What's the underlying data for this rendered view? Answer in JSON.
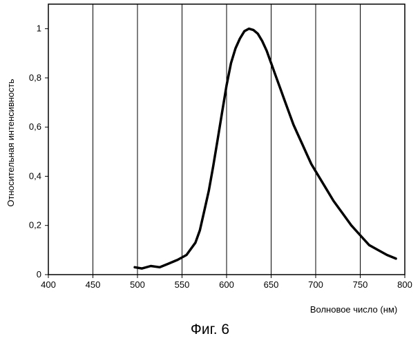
{
  "figure_caption": "Фиг. 6",
  "chart_data": {
    "type": "line",
    "xlabel": "Волновое число (нм)",
    "ylabel": "Относительная интенсивность",
    "xlim": [
      400,
      800
    ],
    "ylim": [
      0,
      1.1
    ],
    "x_ticks": [
      400,
      450,
      500,
      550,
      600,
      650,
      700,
      750,
      800
    ],
    "y_ticks": [
      0,
      0.2,
      0.4,
      0.6,
      0.8,
      1
    ],
    "y_tick_labels": [
      "0",
      "0,2",
      "0,4",
      "0,6",
      "0,8",
      "1"
    ],
    "grid": {
      "vertical": true,
      "horizontal": false
    },
    "series": [
      {
        "x": [
          497,
          505,
          515,
          525,
          535,
          545,
          555,
          565,
          570,
          575,
          580,
          585,
          590,
          595,
          600,
          605,
          610,
          615,
          620,
          625,
          630,
          635,
          640,
          645,
          650,
          655,
          660,
          665,
          670,
          675,
          680,
          685,
          690,
          695,
          700,
          710,
          720,
          730,
          740,
          750,
          760,
          770,
          780,
          790
        ],
        "y": [
          0.03,
          0.025,
          0.035,
          0.03,
          0.045,
          0.06,
          0.08,
          0.13,
          0.18,
          0.26,
          0.34,
          0.44,
          0.55,
          0.66,
          0.77,
          0.86,
          0.92,
          0.96,
          0.99,
          1.0,
          0.995,
          0.98,
          0.95,
          0.91,
          0.86,
          0.81,
          0.76,
          0.71,
          0.66,
          0.61,
          0.57,
          0.53,
          0.49,
          0.45,
          0.42,
          0.36,
          0.3,
          0.25,
          0.2,
          0.16,
          0.12,
          0.1,
          0.08,
          0.065
        ]
      }
    ]
  }
}
